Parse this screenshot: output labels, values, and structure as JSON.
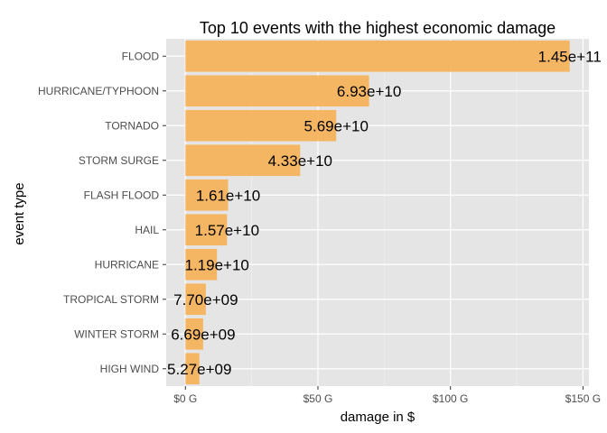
{
  "chart_data": {
    "type": "bar",
    "orientation": "horizontal",
    "title": "Top 10 events with the highest economic damage",
    "xlabel": "damage in $",
    "ylabel": "event type",
    "categories": [
      "FLOOD",
      "HURRICANE/TYPHOON",
      "TORNADO",
      "STORM SURGE",
      "FLASH FLOOD",
      "HAIL",
      "HURRICANE",
      "TROPICAL STORM",
      "WINTER STORM",
      "HIGH WIND"
    ],
    "values": [
      145000000000,
      69300000000,
      56900000000,
      43300000000,
      16100000000,
      15700000000,
      11900000000,
      7700000000,
      6690000000,
      5270000000
    ],
    "data_labels": [
      "1.45e+11",
      "6.93e+10",
      "5.69e+10",
      "4.33e+10",
      "1.61e+10",
      "1.57e+10",
      "1.19e+10",
      "7.70e+09",
      "6.69e+09",
      "5.27e+09"
    ],
    "x_ticks": [
      0,
      50000000000,
      100000000000,
      150000000000
    ],
    "x_tick_labels": [
      "$0 G",
      "$50 G",
      "$100 G",
      "$150 G"
    ],
    "xlim": [
      -7250000000,
      152250000000
    ],
    "grid": true,
    "colors": {
      "bar": "#f6b35d",
      "panel": "#e5e5e5",
      "grid_major": "#ffffff",
      "grid_minor": "#f2f2f2"
    }
  }
}
